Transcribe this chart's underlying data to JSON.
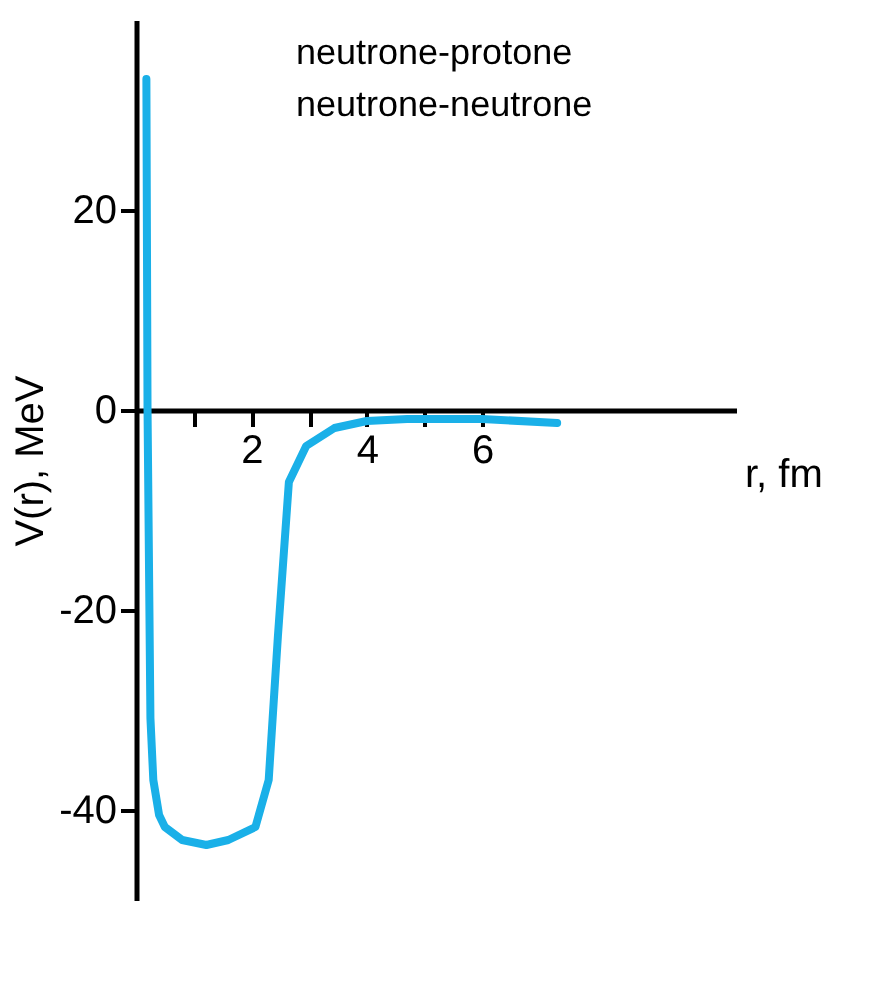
{
  "chart_data": {
    "type": "line",
    "xlabel": "r, fm",
    "ylabel": "V(r), MeV",
    "annotations": [
      "neutrone-protone",
      "neutrone-neutrone"
    ],
    "xlim": [
      0,
      10.4
    ],
    "ylim": [
      -49,
      39
    ],
    "xticks": [
      {
        "value": 1,
        "label": null
      },
      2,
      {
        "value": 3,
        "label": null
      },
      4,
      {
        "value": 5,
        "label": null
      },
      6
    ],
    "yticks": [
      -40,
      -20,
      0,
      20
    ],
    "grid": false,
    "marker": "none",
    "line_style": "solid",
    "series": [
      {
        "color": "#1ab0e8",
        "x": [
          0.18,
          0.2,
          0.25,
          0.3,
          0.4,
          0.5,
          0.8,
          1.22,
          1.6,
          2.07,
          2.3,
          2.46,
          2.65,
          2.95,
          3.44,
          4.0,
          4.7,
          6.0,
          7.3
        ],
        "values": [
          33.1,
          0,
          -30.8,
          -37,
          -40.5,
          -41.7,
          -43,
          -43.5,
          -43,
          -41.7,
          -37,
          -22.6,
          -7.2,
          -3.6,
          -1.8,
          -1.1,
          -0.9,
          -0.9,
          -1.3
        ]
      }
    ]
  }
}
